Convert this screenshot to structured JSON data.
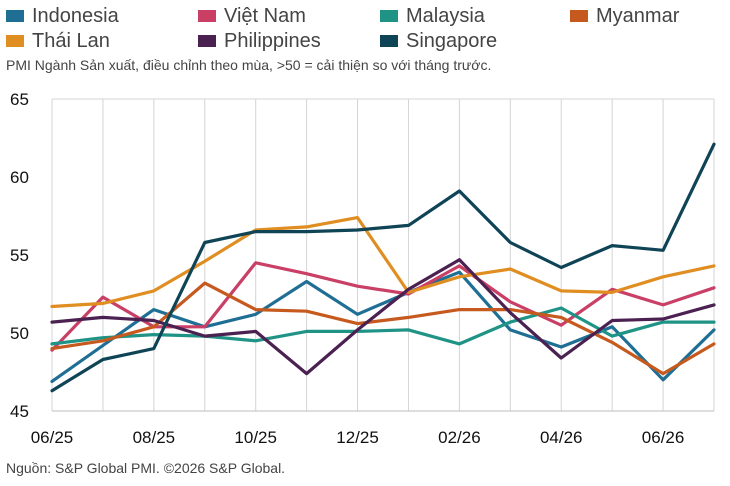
{
  "chart_data": {
    "type": "line",
    "subtitle": "PMI Ngành Sản xuất, điều chỉnh theo mùa, >50 = cải thiện so với tháng trước.",
    "source": "Nguồn: S&P Global PMI. ©2026 S&P Global.",
    "x_tick_labels": [
      "06/25",
      "08/25",
      "10/25",
      "12/25",
      "02/26",
      "04/26",
      "06/26"
    ],
    "x_periods": [
      "06/25",
      "07/25",
      "08/25",
      "09/25",
      "10/25",
      "11/25",
      "12/25",
      "01/26",
      "02/26",
      "03/26",
      "04/26",
      "05/26",
      "06/26",
      "07/26"
    ],
    "y_ticks": [
      45,
      50,
      55,
      60,
      65
    ],
    "ylim": [
      45,
      65
    ],
    "grid": "vertical",
    "legend_position": "top",
    "series": [
      {
        "name": "Indonesia",
        "color": "#1f6e94",
        "values": [
          46.9,
          49.2,
          51.5,
          50.4,
          51.2,
          53.3,
          51.2,
          52.6,
          53.9,
          50.2,
          49.1,
          50.4,
          47.0,
          50.2
        ]
      },
      {
        "name": "Việt Nam",
        "color": "#c93f66",
        "values": [
          48.9,
          52.3,
          50.4,
          50.4,
          54.5,
          53.8,
          53.0,
          52.5,
          54.3,
          52.0,
          50.5,
          52.8,
          51.8,
          52.9
        ]
      },
      {
        "name": "Malaysia",
        "color": "#1f9386",
        "values": [
          49.3,
          49.7,
          49.9,
          49.8,
          49.5,
          50.1,
          50.1,
          50.2,
          49.3,
          50.7,
          51.6,
          49.8,
          50.7,
          50.7
        ]
      },
      {
        "name": "Myanmar",
        "color": "#c65a1e",
        "values": [
          49.0,
          49.5,
          50.4,
          53.2,
          51.5,
          51.4,
          50.6,
          51.0,
          51.5,
          51.5,
          51.0,
          49.4,
          47.4,
          49.3
        ]
      },
      {
        "name": "Thái Lan",
        "color": "#e08e22",
        "values": [
          51.7,
          51.9,
          52.7,
          54.6,
          56.6,
          56.8,
          57.4,
          52.6,
          53.6,
          54.1,
          52.7,
          52.6,
          53.6,
          54.3
        ]
      },
      {
        "name": "Philippines",
        "color": "#4a2151",
        "values": [
          50.7,
          51.0,
          50.8,
          49.8,
          50.1,
          47.4,
          50.2,
          52.8,
          54.7,
          51.3,
          48.4,
          50.8,
          50.9,
          51.8
        ]
      },
      {
        "name": "Singapore",
        "color": "#0f4456",
        "values": [
          46.3,
          48.3,
          49.0,
          55.8,
          56.5,
          56.5,
          56.6,
          56.9,
          59.1,
          55.8,
          54.2,
          55.6,
          55.3,
          62.1
        ]
      }
    ]
  }
}
